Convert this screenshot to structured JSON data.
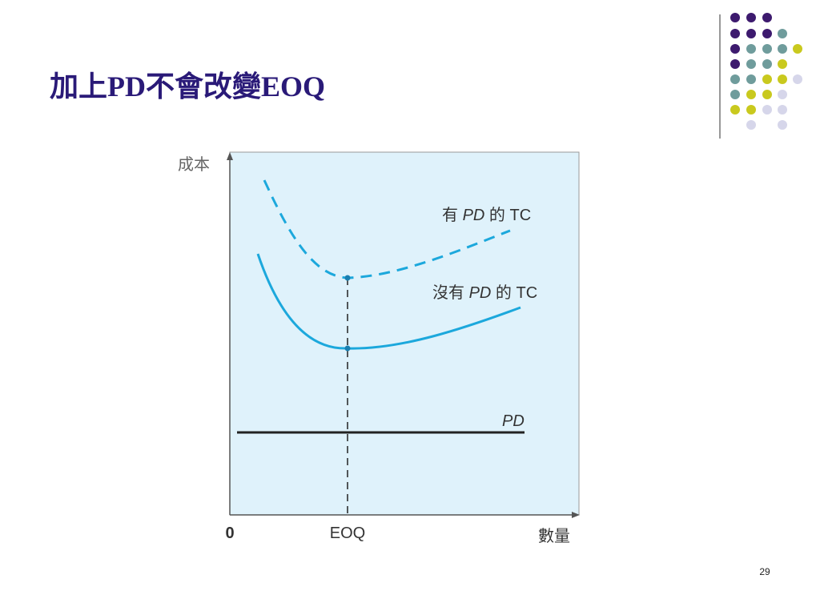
{
  "header": {
    "title": "加上PD不會改變EOQ"
  },
  "diagram": {
    "y_axis_label": "成本",
    "x_axis_label": "數量",
    "origin_label": "0",
    "eoq_label": "EOQ",
    "tc_with_pd": [
      "有 ",
      "PD",
      " 的 TC"
    ],
    "tc_without_pd": [
      "沒有 ",
      "PD",
      " 的 TC"
    ],
    "pd_label": "PD"
  },
  "footer": {
    "page_number": "29"
  }
}
